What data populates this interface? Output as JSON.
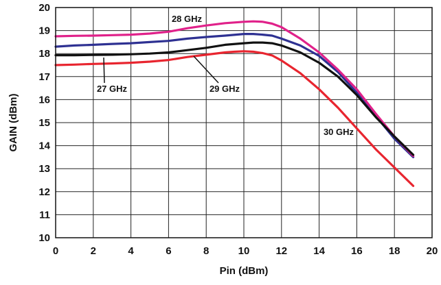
{
  "chart_data": {
    "type": "line",
    "title": "",
    "xlabel": "Pin (dBm)",
    "ylabel": "GAIN (dBm)",
    "xlim": [
      0,
      20
    ],
    "ylim": [
      10,
      20
    ],
    "x_ticks": [
      0,
      2,
      4,
      6,
      8,
      10,
      12,
      14,
      16,
      18,
      20
    ],
    "y_ticks": [
      10,
      11,
      12,
      13,
      14,
      15,
      16,
      17,
      18,
      19,
      20
    ],
    "x_tick_labels": [
      "0",
      "2",
      "4",
      "6",
      "8",
      "10",
      "12",
      "14",
      "16",
      "18",
      "20"
    ],
    "y_tick_labels": [
      "10",
      "11",
      "12",
      "13",
      "14",
      "15",
      "16",
      "17",
      "18",
      "19",
      "20"
    ],
    "grid": true,
    "legend": "inline labels",
    "series": [
      {
        "name": "27 GHz",
        "color": "#2e3192",
        "x": [
          0,
          1,
          2,
          3,
          4,
          5,
          6,
          7,
          8,
          9,
          10,
          10.5,
          11,
          11.5,
          12,
          13,
          14,
          15,
          16,
          17,
          18,
          19
        ],
        "y": [
          18.3,
          18.35,
          18.38,
          18.42,
          18.45,
          18.5,
          18.55,
          18.65,
          18.72,
          18.78,
          18.85,
          18.85,
          18.82,
          18.78,
          18.65,
          18.35,
          17.9,
          17.2,
          16.3,
          15.3,
          14.3,
          13.5
        ]
      },
      {
        "name": "28 GHz",
        "color": "#e0218a",
        "x": [
          0,
          1,
          2,
          3,
          4,
          5,
          6,
          7,
          8,
          9,
          10,
          10.5,
          11,
          11.5,
          12,
          13,
          14,
          15,
          16,
          17,
          18,
          19
        ],
        "y": [
          18.75,
          18.77,
          18.78,
          18.8,
          18.82,
          18.87,
          18.95,
          19.1,
          19.22,
          19.32,
          19.38,
          19.4,
          19.38,
          19.3,
          19.15,
          18.65,
          18.05,
          17.3,
          16.45,
          15.4,
          14.4,
          13.55
        ]
      },
      {
        "name": "29 GHz",
        "color": "#111111",
        "x": [
          0,
          1,
          2,
          3,
          4,
          5,
          6,
          7,
          8,
          9,
          10,
          10.5,
          11,
          11.5,
          12,
          13,
          14,
          15,
          16,
          17,
          18,
          19
        ],
        "y": [
          17.93,
          17.93,
          17.94,
          17.95,
          17.97,
          18.0,
          18.05,
          18.15,
          18.25,
          18.38,
          18.45,
          18.48,
          18.48,
          18.45,
          18.35,
          18.05,
          17.6,
          17.0,
          16.2,
          15.25,
          14.4,
          13.6
        ]
      },
      {
        "name": "30 GHz",
        "color": "#e8252f",
        "x": [
          0,
          1,
          2,
          3,
          4,
          5,
          6,
          7,
          8,
          9,
          9.5,
          10,
          10.5,
          11,
          11.5,
          12,
          13,
          14,
          15,
          16,
          17,
          18,
          19
        ],
        "y": [
          17.5,
          17.52,
          17.55,
          17.57,
          17.6,
          17.65,
          17.72,
          17.85,
          17.95,
          18.05,
          18.08,
          18.1,
          18.08,
          18.02,
          17.92,
          17.7,
          17.15,
          16.45,
          15.65,
          14.75,
          13.85,
          13.05,
          12.25
        ]
      }
    ],
    "annotations": [
      {
        "text": "28 GHz",
        "series": "28 GHz"
      },
      {
        "text": "27 GHz",
        "series": "27 GHz"
      },
      {
        "text": "29 GHz",
        "series": "29 GHz"
      },
      {
        "text": "30 GHz",
        "series": "30 GHz"
      }
    ]
  }
}
